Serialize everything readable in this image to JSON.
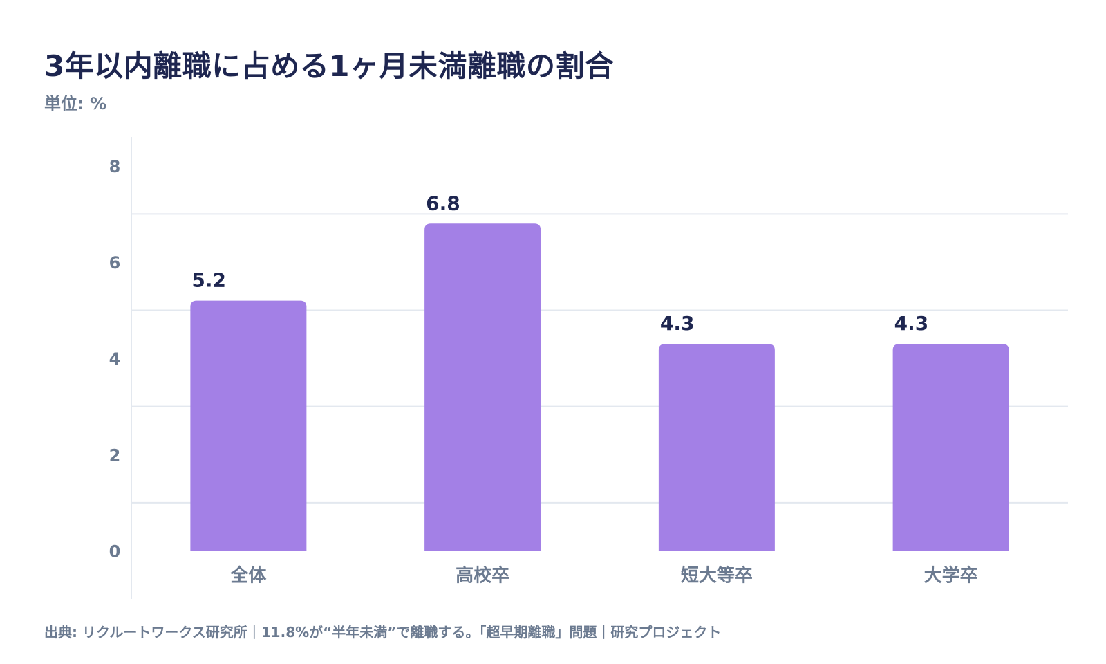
{
  "title": "3年以内離職に占める1ヶ月未満離職の割合",
  "unit": "単位: %",
  "source": "出典: リクルートワークス研究所｜11.8%が“半年未満”で離職する。「超早期離職」問題｜研究プロジェクト",
  "colors": {
    "bar": "#a380e6",
    "grid": "#e3e8ef",
    "axis_text": "#6b7a90",
    "value_text": "#1e2650"
  },
  "chart_data": {
    "type": "bar",
    "title": "3年以内離職に占める1ヶ月未満離職の割合",
    "ylabel": "単位: %",
    "categories": [
      "全体",
      "高校卒",
      "短大等卒",
      "大学卒"
    ],
    "values": [
      5.2,
      6.8,
      4.3,
      4.3
    ],
    "value_labels": [
      "5.2",
      "6.8",
      "4.3",
      "4.3"
    ],
    "yticks": [
      0,
      2,
      4,
      6,
      8
    ],
    "ytick_labels": [
      "0",
      "2",
      "4",
      "6",
      "8"
    ],
    "ylim": [
      -1,
      8.6
    ],
    "grid": true,
    "legend": "none"
  }
}
